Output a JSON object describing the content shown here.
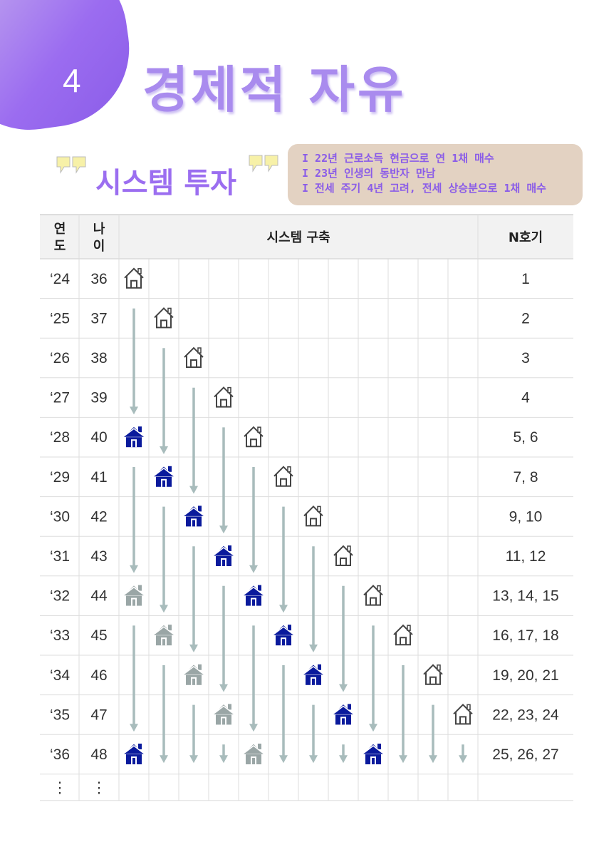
{
  "header": {
    "chapter_number": "4",
    "chapter_title": "경제적 자유",
    "section_title": "시스템 투자"
  },
  "notes": [
    "I 22년 근로소득 현금으로 연 1채 매수",
    "I 23년 인생의 동반자 만남",
    "I 전세 주기 4년 고려, 전세 상승분으로 1채 매수"
  ],
  "table": {
    "headers": {
      "year": "연\n도",
      "age": "나\n이",
      "system": "시스템 구축",
      "count": "N호기"
    },
    "rows": [
      {
        "year": "‘24",
        "age": "36",
        "count": "1"
      },
      {
        "year": "‘25",
        "age": "37",
        "count": "2"
      },
      {
        "year": "‘26",
        "age": "38",
        "count": "3"
      },
      {
        "year": "‘27",
        "age": "39",
        "count": "4"
      },
      {
        "year": "‘28",
        "age": "40",
        "count": "5, 6"
      },
      {
        "year": "‘29",
        "age": "41",
        "count": "7, 8"
      },
      {
        "year": "‘30",
        "age": "42",
        "count": "9, 10"
      },
      {
        "year": "‘31",
        "age": "43",
        "count": "11, 12"
      },
      {
        "year": "‘32",
        "age": "44",
        "count": "13, 14, 15"
      },
      {
        "year": "‘33",
        "age": "45",
        "count": "16, 17, 18"
      },
      {
        "year": "‘34",
        "age": "46",
        "count": "19, 20, 21"
      },
      {
        "year": "‘35",
        "age": "47",
        "count": "22, 23, 24"
      },
      {
        "year": "‘36",
        "age": "48",
        "count": "25, 26, 27"
      },
      {
        "year": "⋮",
        "age": "⋮",
        "count": ""
      }
    ],
    "houses": [
      {
        "row": 0,
        "col": 0,
        "type": "outline"
      },
      {
        "row": 1,
        "col": 1,
        "type": "outline"
      },
      {
        "row": 2,
        "col": 2,
        "type": "outline"
      },
      {
        "row": 3,
        "col": 3,
        "type": "outline"
      },
      {
        "row": 4,
        "col": 0,
        "type": "blue"
      },
      {
        "row": 4,
        "col": 4,
        "type": "outline"
      },
      {
        "row": 5,
        "col": 1,
        "type": "blue"
      },
      {
        "row": 5,
        "col": 5,
        "type": "outline"
      },
      {
        "row": 6,
        "col": 2,
        "type": "blue"
      },
      {
        "row": 6,
        "col": 6,
        "type": "outline"
      },
      {
        "row": 7,
        "col": 3,
        "type": "blue"
      },
      {
        "row": 7,
        "col": 7,
        "type": "outline"
      },
      {
        "row": 8,
        "col": 0,
        "type": "gray"
      },
      {
        "row": 8,
        "col": 4,
        "type": "blue"
      },
      {
        "row": 8,
        "col": 8,
        "type": "outline"
      },
      {
        "row": 9,
        "col": 1,
        "type": "gray"
      },
      {
        "row": 9,
        "col": 5,
        "type": "blue"
      },
      {
        "row": 9,
        "col": 9,
        "type": "outline"
      },
      {
        "row": 10,
        "col": 2,
        "type": "gray"
      },
      {
        "row": 10,
        "col": 6,
        "type": "blue"
      },
      {
        "row": 10,
        "col": 10,
        "type": "outline"
      },
      {
        "row": 11,
        "col": 3,
        "type": "gray"
      },
      {
        "row": 11,
        "col": 7,
        "type": "blue"
      },
      {
        "row": 11,
        "col": 11,
        "type": "outline"
      },
      {
        "row": 12,
        "col": 0,
        "type": "blue"
      },
      {
        "row": 12,
        "col": 4,
        "type": "gray"
      },
      {
        "row": 12,
        "col": 8,
        "type": "blue"
      }
    ],
    "colors": {
      "blue_house": "#0a1a9c",
      "gray_house": "#9aa6a6",
      "arrow": "#a8bcbc",
      "header_bg": "#f2f2f2",
      "grid": "#dddddd"
    }
  }
}
